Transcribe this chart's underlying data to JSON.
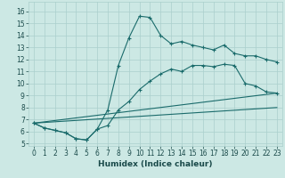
{
  "xlabel": "Humidex (Indice chaleur)",
  "xlim": [
    -0.5,
    23.5
  ],
  "ylim": [
    4.8,
    16.8
  ],
  "xticks": [
    0,
    1,
    2,
    3,
    4,
    5,
    6,
    7,
    8,
    9,
    10,
    11,
    12,
    13,
    14,
    15,
    16,
    17,
    18,
    19,
    20,
    21,
    22,
    23
  ],
  "yticks": [
    5,
    6,
    7,
    8,
    9,
    10,
    11,
    12,
    13,
    14,
    15,
    16
  ],
  "bg_color": "#cce8e4",
  "grid_color": "#aacfcc",
  "line_color": "#1a6b6b",
  "line1_x": [
    0,
    1,
    2,
    3,
    4,
    5,
    6,
    7,
    8,
    9,
    10,
    11,
    12,
    13,
    14,
    15,
    16,
    17,
    18,
    19,
    20,
    21,
    22,
    23
  ],
  "line1_y": [
    6.7,
    6.3,
    6.1,
    5.9,
    5.4,
    5.3,
    6.2,
    7.8,
    11.5,
    13.8,
    15.6,
    15.5,
    14.0,
    13.3,
    13.5,
    13.2,
    13.0,
    12.8,
    13.2,
    12.5,
    12.3,
    12.3,
    12.0,
    11.8
  ],
  "line2_x": [
    0,
    1,
    2,
    3,
    4,
    5,
    6,
    7,
    8,
    9,
    10,
    11,
    12,
    13,
    14,
    15,
    16,
    17,
    18,
    19,
    20,
    21,
    22,
    23
  ],
  "line2_y": [
    6.7,
    6.3,
    6.1,
    5.9,
    5.4,
    5.3,
    6.2,
    6.5,
    7.8,
    8.5,
    9.5,
    10.2,
    10.8,
    11.2,
    11.0,
    11.5,
    11.5,
    11.4,
    11.6,
    11.5,
    10.0,
    9.8,
    9.3,
    9.2
  ],
  "line3_x": [
    0,
    23
  ],
  "line3_y": [
    6.7,
    9.2
  ],
  "line4_x": [
    0,
    23
  ],
  "line4_y": [
    6.7,
    8.0
  ],
  "tick_fontsize": 5.5,
  "label_fontsize": 6.5,
  "font_color": "#1a4a4a"
}
